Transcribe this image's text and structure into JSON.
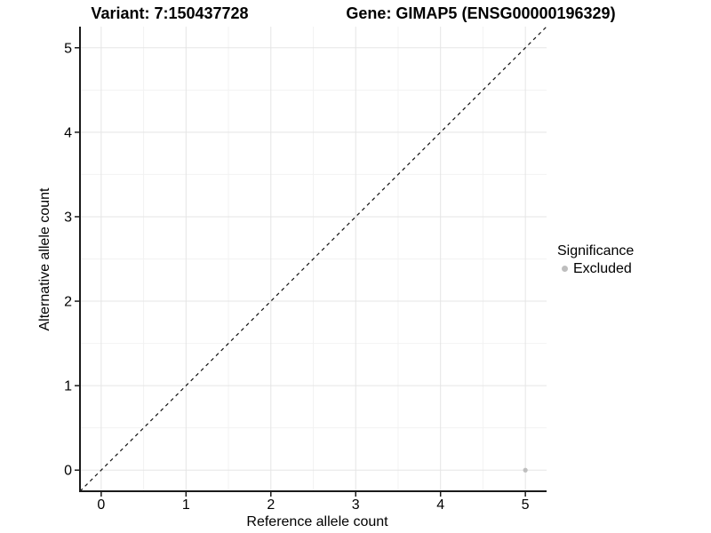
{
  "chart_data": {
    "type": "scatter",
    "title_left": "Variant: 7:150437728",
    "title_right": "Gene: GIMAP5 (ENSG00000196329)",
    "xlabel": "Reference allele count",
    "ylabel": "Alternative allele count",
    "xlim": [
      -0.25,
      5.25
    ],
    "ylim": [
      -0.25,
      5.25
    ],
    "xticks": [
      0,
      1,
      2,
      3,
      4,
      5
    ],
    "yticks": [
      0,
      1,
      2,
      3,
      4,
      5
    ],
    "x_minor": [
      0.5,
      1.5,
      2.5,
      3.5,
      4.5
    ],
    "y_minor": [
      0.5,
      1.5,
      2.5,
      3.5,
      4.5
    ],
    "grid": true,
    "identity_line": {
      "slope": 1,
      "intercept": 0,
      "style": "dashed",
      "color": "#111111"
    },
    "series": [
      {
        "name": "Excluded",
        "color": "#bebebe",
        "points": [
          {
            "x": 5,
            "y": 0
          }
        ]
      }
    ],
    "legend": {
      "position": "right",
      "title": "Significance",
      "items": [
        {
          "label": "Excluded",
          "color": "#bebebe"
        }
      ]
    },
    "colors": {
      "axis_line": "#1a1a1a",
      "tick_mark": "#1a1a1a",
      "tick_label": "#000000",
      "grid_major": "#e5e5e5",
      "grid_minor": "#f2f2f2",
      "background": "#ffffff"
    }
  }
}
